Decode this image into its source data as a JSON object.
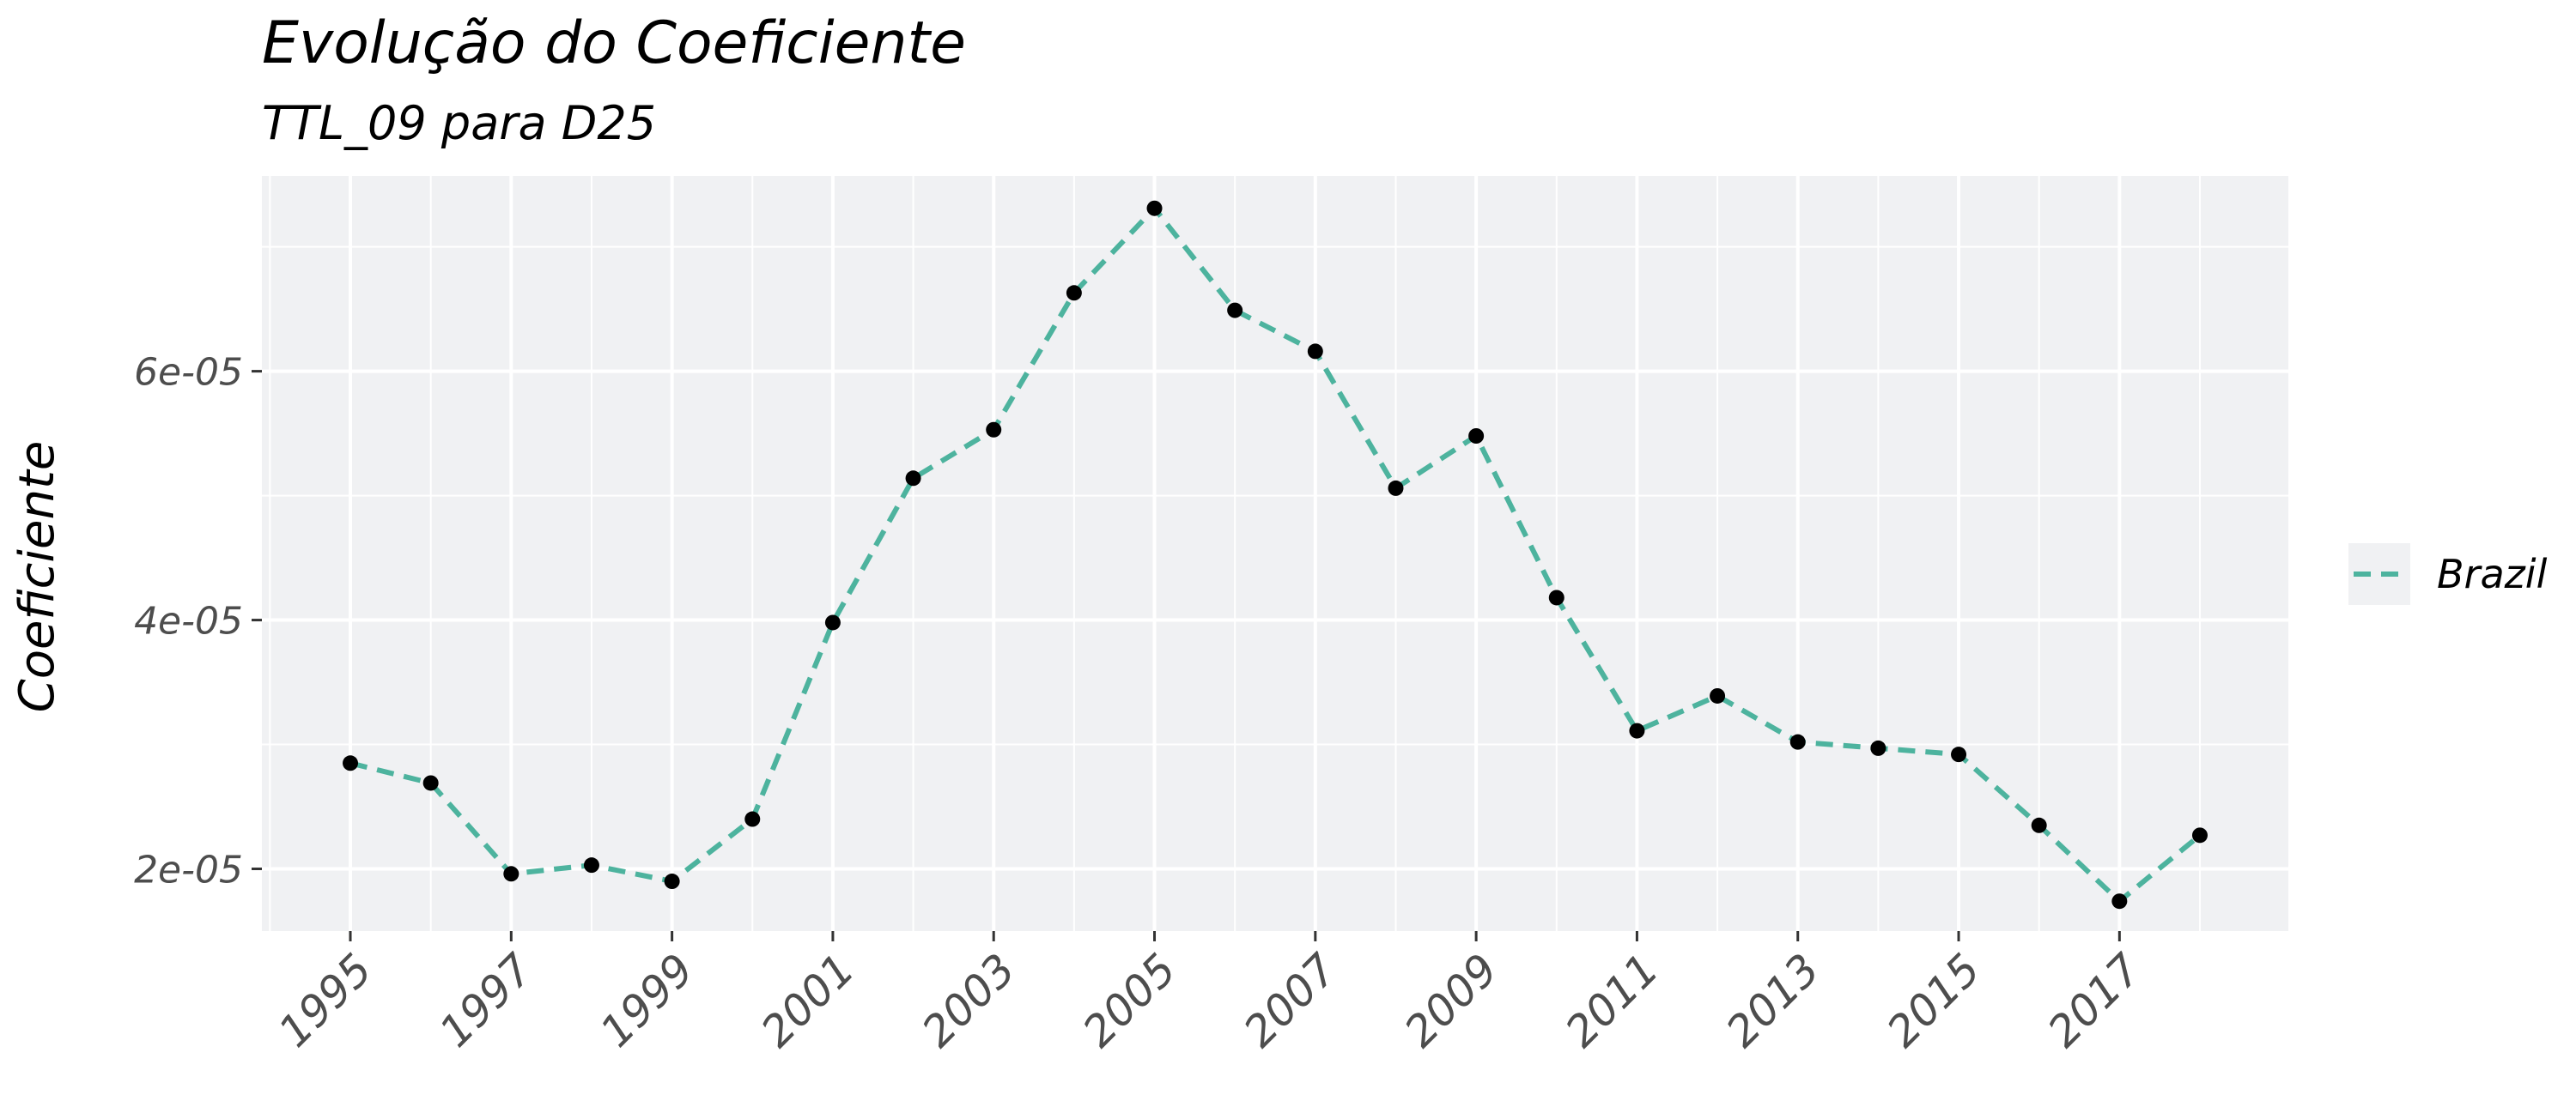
{
  "chart_data": {
    "type": "line",
    "title": "Evolução do Coeficiente",
    "subtitle": "TTL_09 para D25",
    "xlabel": "",
    "ylabel": "Coeficiente",
    "x": [
      1995,
      1996,
      1997,
      1998,
      1999,
      2000,
      2001,
      2002,
      2003,
      2004,
      2005,
      2006,
      2007,
      2008,
      2009,
      2010,
      2011,
      2012,
      2013,
      2014,
      2015,
      2016,
      2017,
      2018
    ],
    "series": [
      {
        "name": "Brazil",
        "values": [
          2.85e-05,
          2.69e-05,
          1.96e-05,
          2.03e-05,
          1.9e-05,
          2.4e-05,
          3.98e-05,
          5.14e-05,
          5.53e-05,
          6.63e-05,
          7.31e-05,
          6.49e-05,
          6.16e-05,
          5.06e-05,
          5.48e-05,
          4.18e-05,
          3.11e-05,
          3.39e-05,
          3.02e-05,
          2.97e-05,
          2.92e-05,
          2.35e-05,
          1.74e-05,
          2.27e-05
        ],
        "color": "#4db39e",
        "line_style": "dashed",
        "markers": true,
        "marker_color": "#000000"
      }
    ],
    "xlim": [
      1993.9,
      2019.1
    ],
    "ylim": [
      1.5e-05,
      7.57e-05
    ],
    "x_ticks": [
      1995,
      1997,
      1999,
      2001,
      2003,
      2005,
      2007,
      2009,
      2011,
      2013,
      2015,
      2017
    ],
    "x_tick_labels": [
      "1995",
      "1997",
      "1999",
      "2001",
      "2003",
      "2005",
      "2007",
      "2009",
      "2011",
      "2013",
      "2015",
      "2017"
    ],
    "y_ticks": [
      2e-05,
      4e-05,
      6e-05
    ],
    "y_tick_labels": [
      "2e-05",
      "4e-05",
      "6e-05"
    ],
    "grid": true,
    "panel_background": "#f0f1f3",
    "grid_color": "#ffffff",
    "legend_position": "right"
  }
}
